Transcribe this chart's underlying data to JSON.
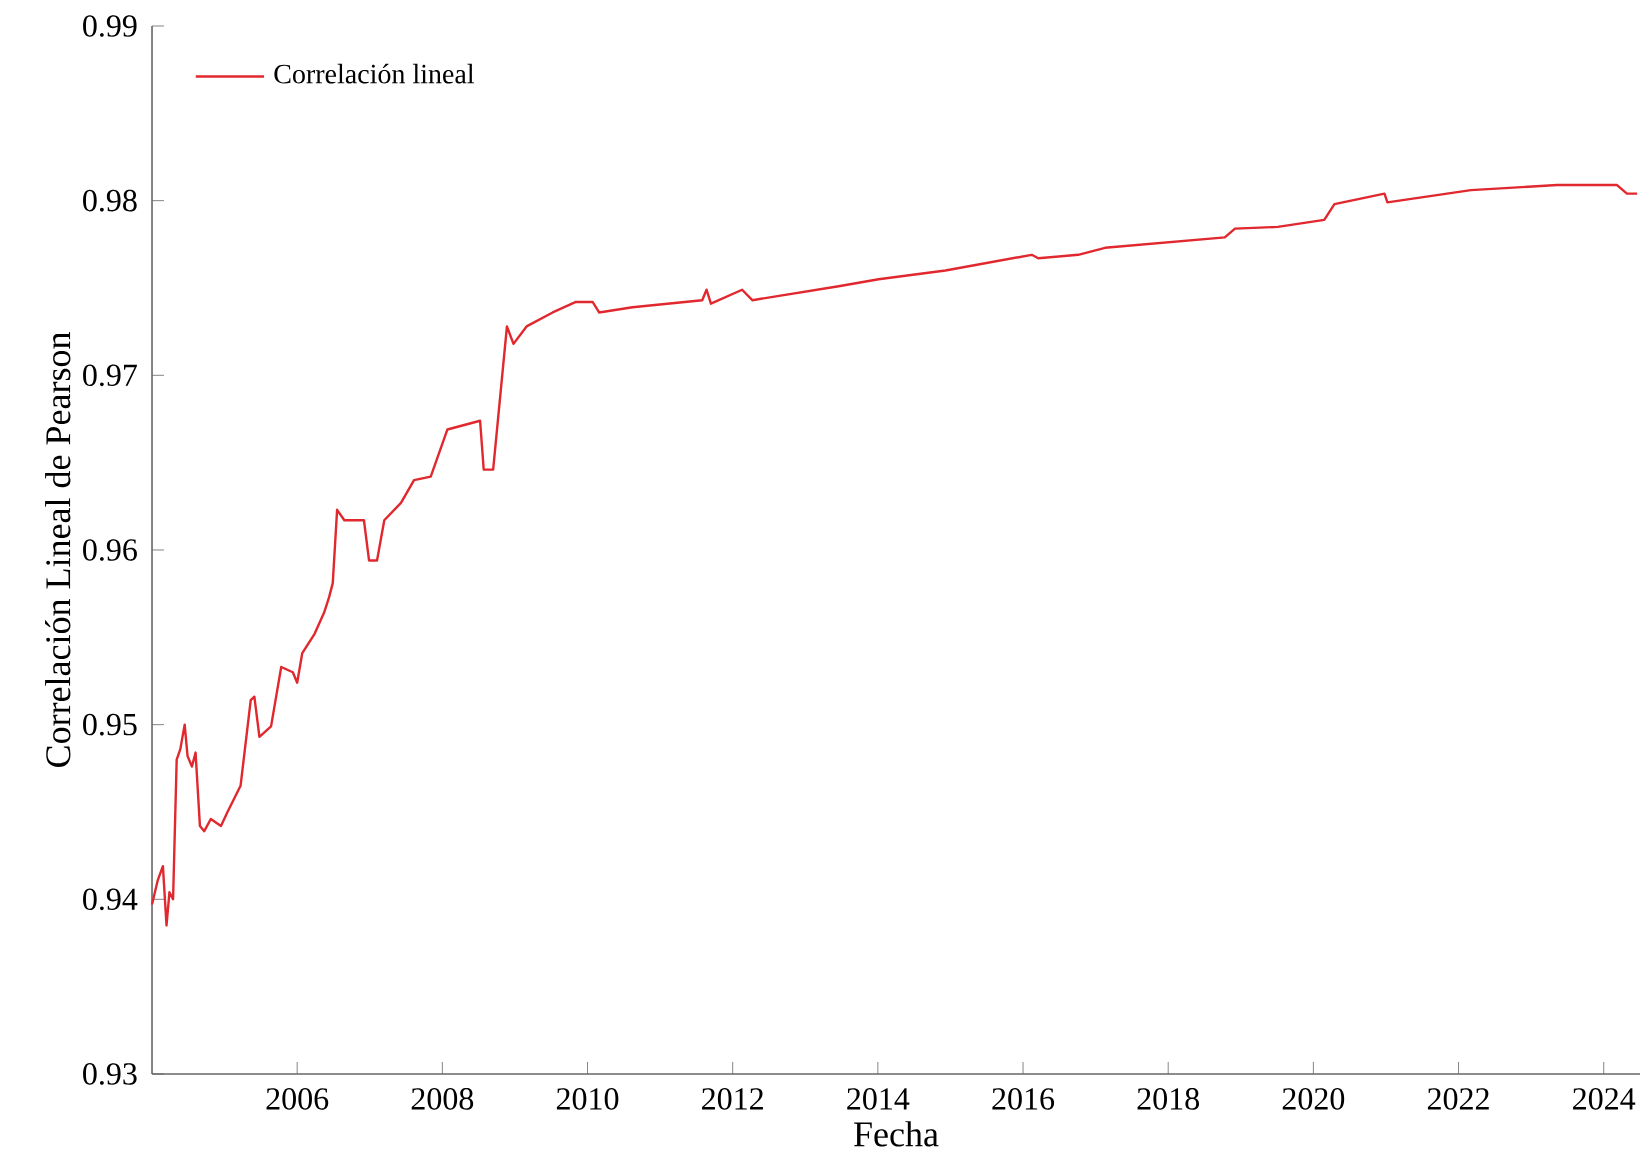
{
  "chart_data": {
    "type": "line",
    "xlabel": "Fecha",
    "ylabel": "Correlación Lineal de Pearson",
    "xlim": [
      2004.0,
      2024.5
    ],
    "xticks": [
      2006,
      2008,
      2010,
      2012,
      2014,
      2016,
      2018,
      2020,
      2022,
      2024
    ],
    "ylim": [
      0.93,
      0.99
    ],
    "yticks": [
      0.93,
      0.94,
      0.95,
      0.96,
      0.97,
      0.98,
      0.99
    ],
    "legend": "top left",
    "grid": false,
    "marker": "none",
    "line_style": "solid",
    "series": [
      {
        "name": "Correlación lineal",
        "color": "#e0282e",
        "x": [
          2004.0,
          2004.08,
          2004.15,
          2004.2,
          2004.24,
          2004.29,
          2004.34,
          2004.39,
          2004.45,
          2004.49,
          2004.55,
          2004.6,
          2004.66,
          2004.72,
          2004.81,
          2004.95,
          2005.04,
          2005.22,
          2005.36,
          2005.41,
          2005.48,
          2005.64,
          2005.78,
          2005.94,
          2006.0,
          2006.07,
          2006.24,
          2006.37,
          2006.44,
          2006.49,
          2006.55,
          2006.65,
          2006.92,
          2006.99,
          2007.1,
          2007.2,
          2007.43,
          2007.61,
          2007.84,
          2008.07,
          2008.52,
          2008.57,
          2008.7,
          2008.89,
          2008.98,
          2009.16,
          2009.52,
          2009.84,
          2010.07,
          2010.16,
          2010.62,
          2011.58,
          2011.64,
          2011.7,
          2012.13,
          2012.27,
          2013.46,
          2014.01,
          2014.93,
          2016.12,
          2016.21,
          2016.76,
          2017.13,
          2018.78,
          2018.92,
          2019.51,
          2020.15,
          2020.29,
          2020.98,
          2021.02,
          2022.17,
          2023.36,
          2024.18,
          2024.32,
          2024.46
        ],
        "values": [
          0.9397,
          0.9411,
          0.9419,
          0.9385,
          0.9404,
          0.94,
          0.948,
          0.9486,
          0.95,
          0.9482,
          0.9476,
          0.9484,
          0.9442,
          0.9439,
          0.9446,
          0.9442,
          0.945,
          0.9465,
          0.9514,
          0.9516,
          0.9493,
          0.9499,
          0.9533,
          0.953,
          0.9524,
          0.9541,
          0.9552,
          0.9564,
          0.9573,
          0.9581,
          0.9623,
          0.9617,
          0.9617,
          0.9594,
          0.9594,
          0.9617,
          0.9627,
          0.964,
          0.9642,
          0.9669,
          0.9674,
          0.9646,
          0.9646,
          0.9728,
          0.9718,
          0.9728,
          0.9736,
          0.9742,
          0.9742,
          0.9736,
          0.9739,
          0.9743,
          0.9749,
          0.9741,
          0.9749,
          0.9743,
          0.9751,
          0.9755,
          0.976,
          0.9769,
          0.9767,
          0.9769,
          0.9773,
          0.9779,
          0.9784,
          0.9785,
          0.9789,
          0.9798,
          0.9804,
          0.9799,
          0.9806,
          0.9809,
          0.9809,
          0.9804,
          0.9804
        ]
      }
    ]
  }
}
